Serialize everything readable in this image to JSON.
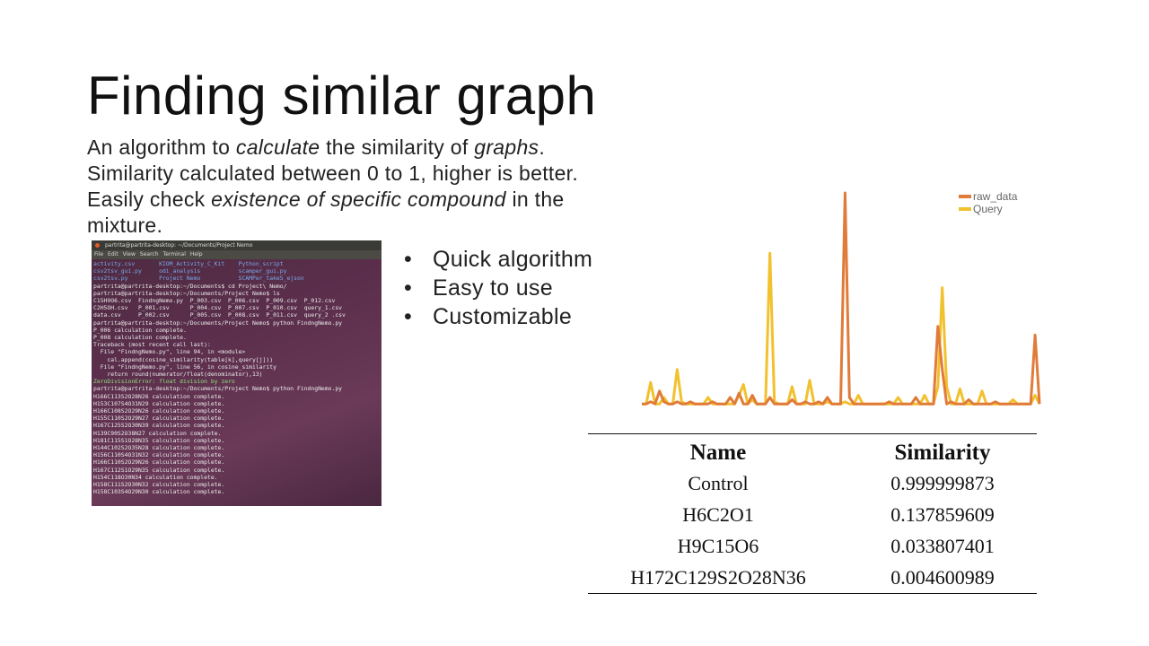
{
  "slide": {
    "title": "Finding similar graph",
    "desc": {
      "l1a": "An algorithm to ",
      "l1b": "calculate",
      "l1c": " the similarity of ",
      "l1d": "graphs",
      "l1e": ".",
      "l2": "Similarity calculated between 0 to 1, higher is better.",
      "l3a": "Easily check ",
      "l3b": "existence of specific compound",
      "l3c": " in the",
      "l4": "mixture."
    },
    "bullets": [
      "Quick algorithm",
      "Easy to use",
      "Customizable"
    ]
  },
  "terminal": {
    "title": "partrita@partrita-desktop: ~/Documents/Project Nemo",
    "menu": [
      "File",
      "Edit",
      "View",
      "Search",
      "Terminal",
      "Help"
    ],
    "lines": [
      "activity.csv       KIOM_Activity_C_Kit    Python_script",
      "csv2tsv_gui.py     odi_analysis           scamper_gui.py",
      "csv2tsv.py         Project Nemo           SCAMPer_take5_ejson",
      "partrita@partrita-desktop:~/Documents$ cd Project\\ Nemo/",
      "partrita@partrita-desktop:~/Documents/Project Nemo$ ls",
      "C15H9O6.csv  FindngNemo.py  P_003.csv  P_006.csv  P_009.csv  P_012.csv",
      "C2H5OH.csv   P_001.csv      P_004.csv  P_007.csv  P_010.csv  query_1.csv",
      "data.csv     P_002.csv      P_005.csv  P_008.csv  P_011.csv  query_2 .csv",
      "partrita@partrita-desktop:~/Documents/Project Nemo$ python FindngNemo.py",
      "P_006 calculation complete.",
      "P_008 calculation complete.",
      "Traceback (most recent call last):",
      "  File \"FindngNemo.py\", line 94, in <module>",
      "    cal.append(cosine_similarity(table[k],query[j]))",
      "  File \"FindngNemo.py\", line 56, in cosine_similarity",
      "    return round(numerator/float(denominator),13)",
      "ZeroDivisionError: float division by zero",
      "partrita@partrita-desktop:~/Documents/Project Nemo$ python FindngNemo.py",
      "H166C113S2O28N26 calculation complete.",
      "H153C107S4O31N29 calculation complete.",
      "H166C108S2O29N26 calculation complete.",
      "H155C110S2O29N27 calculation complete.",
      "H167C125S2O30N39 calculation complete.",
      "H139C90S2O38N27 calculation complete.",
      "H181C115S1O28N35 calculation complete.",
      "H144C102S2O35N28 calculation complete.",
      "H156C110S4O31N32 calculation complete.",
      "H166C110S2O29N26 calculation complete.",
      "H167C112S1O29N35 calculation complete.",
      "H154C118O30N34 calculation complete.",
      "H158C111S2O30N32 calculation complete.",
      "H158C103S4O29N30 calculation complete."
    ]
  },
  "chart_data": {
    "type": "line",
    "legend_position": "top-right",
    "grid": false,
    "axes_visible": false,
    "colors": {
      "raw_data": "#e07b39",
      "Query": "#f2c12e"
    },
    "series": [
      {
        "name": "raw_data",
        "values": [
          0.02,
          0.02,
          0.03,
          0.02,
          0.08,
          0.03,
          0.02,
          0.02,
          0.03,
          0.02,
          0.02,
          0.03,
          0.02,
          0.02,
          0.02,
          0.02,
          0.03,
          0.02,
          0.02,
          0.02,
          0.05,
          0.02,
          0.07,
          0.02,
          0.02,
          0.06,
          0.02,
          0.02,
          0.02,
          0.05,
          0.02,
          0.02,
          0.02,
          0.02,
          0.04,
          0.02,
          0.02,
          0.03,
          0.02,
          0.02,
          0.03,
          0.02,
          0.05,
          0.02,
          0.02,
          0.02,
          1.0,
          0.05,
          0.02,
          0.02,
          0.02,
          0.02,
          0.02,
          0.02,
          0.02,
          0.02,
          0.03,
          0.02,
          0.02,
          0.02,
          0.02,
          0.02,
          0.05,
          0.02,
          0.02,
          0.02,
          0.02,
          0.38,
          0.18,
          0.02,
          0.03,
          0.02,
          0.02,
          0.02,
          0.04,
          0.02,
          0.02,
          0.02,
          0.02,
          0.02,
          0.03,
          0.02,
          0.02,
          0.02,
          0.02,
          0.02,
          0.02,
          0.02,
          0.02,
          0.34,
          0.02
        ]
      },
      {
        "name": "Query",
        "values": [
          0.02,
          0.02,
          0.12,
          0.02,
          0.02,
          0.05,
          0.02,
          0.02,
          0.18,
          0.03,
          0.02,
          0.02,
          0.02,
          0.02,
          0.02,
          0.05,
          0.02,
          0.02,
          0.02,
          0.02,
          0.02,
          0.02,
          0.06,
          0.11,
          0.02,
          0.04,
          0.02,
          0.02,
          0.02,
          0.72,
          0.03,
          0.02,
          0.02,
          0.02,
          0.1,
          0.02,
          0.02,
          0.02,
          0.13,
          0.02,
          0.02,
          0.02,
          0.03,
          0.02,
          0.02,
          0.02,
          0.03,
          0.02,
          0.02,
          0.06,
          0.02,
          0.02,
          0.02,
          0.02,
          0.02,
          0.02,
          0.02,
          0.02,
          0.05,
          0.02,
          0.02,
          0.02,
          0.02,
          0.02,
          0.06,
          0.02,
          0.02,
          0.1,
          0.56,
          0.1,
          0.02,
          0.02,
          0.09,
          0.02,
          0.02,
          0.02,
          0.02,
          0.08,
          0.02,
          0.02,
          0.02,
          0.02,
          0.02,
          0.02,
          0.04,
          0.02,
          0.02,
          0.02,
          0.02,
          0.06,
          0.02
        ]
      }
    ]
  },
  "table": {
    "headers": {
      "name": "Name",
      "similarity": "Similarity"
    },
    "rows": [
      {
        "name": "Control",
        "similarity": "0.999999873"
      },
      {
        "name": "H6C2O1",
        "similarity": "0.137859609"
      },
      {
        "name": "H9C15O6",
        "similarity": "0.033807401"
      },
      {
        "name": "H172C129S2O28N36",
        "similarity": "0.004600989"
      }
    ]
  }
}
